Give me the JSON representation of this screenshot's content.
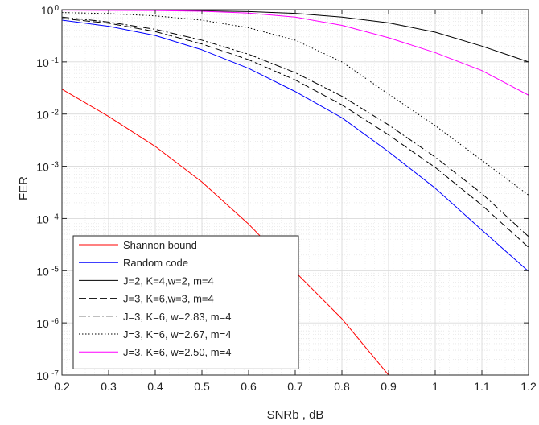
{
  "chart_data": {
    "type": "line",
    "title": "",
    "xlabel": "SNRb , dB",
    "ylabel": "FER",
    "x_scale": "linear",
    "y_scale": "log",
    "xlim": [
      0.2,
      1.2
    ],
    "ylim": [
      1e-07,
      1
    ],
    "grid": true,
    "minor_grid": true,
    "legend_location": "bottom-left",
    "x_ticks": [
      {
        "value": 0.2,
        "label": "0.2"
      },
      {
        "value": 0.3,
        "label": "0.3"
      },
      {
        "value": 0.4,
        "label": "0.4"
      },
      {
        "value": 0.5,
        "label": "0.5"
      },
      {
        "value": 0.6,
        "label": "0.6"
      },
      {
        "value": 0.7,
        "label": "0.7"
      },
      {
        "value": 0.8,
        "label": "0.8"
      },
      {
        "value": 0.9,
        "label": "0.9"
      },
      {
        "value": 1.0,
        "label": "1"
      },
      {
        "value": 1.1,
        "label": "1.1"
      },
      {
        "value": 1.2,
        "label": "1.2"
      }
    ],
    "y_ticks": [
      {
        "value": 1,
        "base": "10",
        "exp": "0"
      },
      {
        "value": 0.1,
        "base": "10",
        "exp": "-1"
      },
      {
        "value": 0.01,
        "base": "10",
        "exp": "-2"
      },
      {
        "value": 0.001,
        "base": "10",
        "exp": "-3"
      },
      {
        "value": 0.0001,
        "base": "10",
        "exp": "-4"
      },
      {
        "value": 1e-05,
        "base": "10",
        "exp": "-5"
      },
      {
        "value": 1e-06,
        "base": "10",
        "exp": "-6"
      },
      {
        "value": 1e-07,
        "base": "10",
        "exp": "-7"
      }
    ],
    "series": [
      {
        "name": "Shannon bound",
        "color": "#ff0000",
        "dash": "solid",
        "x": [
          0.2,
          0.3,
          0.4,
          0.5,
          0.6,
          0.7,
          0.8,
          0.9
        ],
        "y": [
          0.03,
          0.009,
          0.0024,
          0.0005,
          7.8e-05,
          9.5e-06,
          1.2e-06,
          1e-07
        ]
      },
      {
        "name": "Random code",
        "color": "#0000ff",
        "dash": "solid",
        "x": [
          0.2,
          0.3,
          0.4,
          0.5,
          0.6,
          0.7,
          0.8,
          0.9,
          1.0,
          1.1,
          1.2
        ],
        "y": [
          0.63,
          0.48,
          0.32,
          0.17,
          0.075,
          0.027,
          0.0085,
          0.0019,
          0.00038,
          6e-05,
          9.7e-06
        ]
      },
      {
        "name": "J=2, K=4,w=2, m=4",
        "color": "#000000",
        "dash": "solid",
        "x": [
          0.2,
          0.3,
          0.4,
          0.5,
          0.6,
          0.7,
          0.8,
          0.9,
          1.0,
          1.1,
          1.2
        ],
        "y": [
          1.0,
          0.985,
          0.97,
          0.95,
          0.92,
          0.85,
          0.72,
          0.56,
          0.37,
          0.2,
          0.1
        ]
      },
      {
        "name": "J=3, K=6,w=3, m=4",
        "color": "#000000",
        "dash": "dashed",
        "x": [
          0.2,
          0.3,
          0.4,
          0.5,
          0.6,
          0.7,
          0.8,
          0.9,
          1.0,
          1.1,
          1.2
        ],
        "y": [
          0.68,
          0.55,
          0.38,
          0.22,
          0.11,
          0.045,
          0.015,
          0.004,
          0.00095,
          0.00018,
          2.8e-05
        ]
      },
      {
        "name": "J=3,  K=6, w=2.83, m=4",
        "color": "#000000",
        "dash": "dashdot",
        "x": [
          0.2,
          0.3,
          0.4,
          0.5,
          0.6,
          0.7,
          0.8,
          0.9,
          1.0,
          1.1,
          1.2
        ],
        "y": [
          0.72,
          0.58,
          0.42,
          0.26,
          0.14,
          0.062,
          0.022,
          0.0062,
          0.0015,
          0.0003,
          4.5e-05
        ]
      },
      {
        "name": "J=3,  K=6, w=2.67, m=4",
        "color": "#000000",
        "dash": "dotted",
        "x": [
          0.2,
          0.3,
          0.4,
          0.5,
          0.6,
          0.7,
          0.8,
          0.9,
          1.0,
          1.1,
          1.2
        ],
        "y": [
          0.88,
          0.84,
          0.76,
          0.63,
          0.45,
          0.26,
          0.1,
          0.024,
          0.006,
          0.0013,
          0.00028
        ]
      },
      {
        "name": "J=3,  K=6, w=2.50, m=4",
        "color": "#ff00ff",
        "dash": "solid",
        "x": [
          0.2,
          0.3,
          0.4,
          0.5,
          0.6,
          0.7,
          0.8,
          0.9,
          1.0,
          1.1,
          1.2
        ],
        "y": [
          0.98,
          0.97,
          0.96,
          0.93,
          0.86,
          0.72,
          0.5,
          0.29,
          0.15,
          0.068,
          0.023
        ]
      }
    ]
  }
}
